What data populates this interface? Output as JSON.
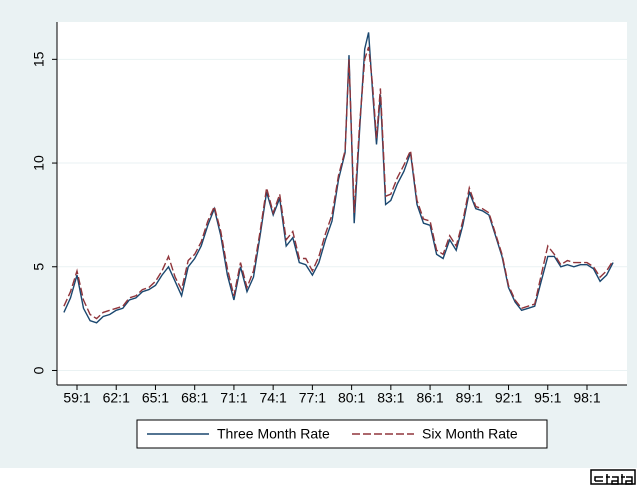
{
  "chart_data": {
    "type": "line",
    "x": [
      1958.0,
      1958.5,
      1959.0,
      1959.5,
      1960.0,
      1960.5,
      1961.0,
      1961.5,
      1962.0,
      1962.5,
      1963.0,
      1963.5,
      1964.0,
      1964.5,
      1965.0,
      1965.5,
      1966.0,
      1966.5,
      1967.0,
      1967.5,
      1968.0,
      1968.5,
      1969.0,
      1969.5,
      1970.0,
      1970.5,
      1971.0,
      1971.5,
      1972.0,
      1972.5,
      1973.0,
      1973.5,
      1974.0,
      1974.5,
      1975.0,
      1975.5,
      1976.0,
      1976.5,
      1977.0,
      1977.5,
      1978.0,
      1978.5,
      1979.0,
      1979.5,
      1979.8,
      1980.2,
      1980.6,
      1981.0,
      1981.3,
      1981.6,
      1981.9,
      1982.2,
      1982.6,
      1983.0,
      1983.5,
      1984.0,
      1984.5,
      1985.0,
      1985.5,
      1986.0,
      1986.5,
      1987.0,
      1987.5,
      1988.0,
      1988.5,
      1989.0,
      1989.5,
      1990.0,
      1990.5,
      1991.0,
      1991.5,
      1992.0,
      1992.5,
      1993.0,
      1993.5,
      1994.0,
      1994.5,
      1995.0,
      1995.5,
      1996.0,
      1996.5,
      1997.0,
      1997.5,
      1998.0,
      1998.5,
      1999.0,
      1999.5,
      2000.0
    ],
    "series": [
      {
        "name": "Three Month Rate",
        "color": "#1a476f",
        "dash": false,
        "values": [
          2.8,
          3.5,
          4.6,
          3.0,
          2.4,
          2.3,
          2.6,
          2.7,
          2.9,
          3.0,
          3.4,
          3.5,
          3.8,
          3.9,
          4.1,
          4.6,
          5.0,
          4.3,
          3.6,
          5.0,
          5.4,
          6.0,
          7.0,
          7.8,
          6.5,
          4.6,
          3.4,
          5.0,
          3.8,
          4.5,
          6.5,
          8.6,
          7.5,
          8.3,
          6.0,
          6.4,
          5.2,
          5.1,
          4.6,
          5.2,
          6.3,
          7.2,
          9.2,
          10.5,
          15.2,
          7.1,
          11.5,
          15.5,
          16.3,
          13.5,
          10.9,
          13.3,
          8.0,
          8.2,
          9.0,
          9.6,
          10.5,
          8.0,
          7.1,
          7.0,
          5.6,
          5.4,
          6.3,
          5.8,
          7.0,
          8.6,
          7.8,
          7.7,
          7.5,
          6.5,
          5.5,
          4.0,
          3.3,
          2.9,
          3.0,
          3.1,
          4.3,
          5.5,
          5.5,
          5.0,
          5.1,
          5.0,
          5.1,
          5.1,
          4.9,
          4.3,
          4.6,
          5.2
        ]
      },
      {
        "name": "Six Month Rate",
        "color": "#90353b",
        "dash": true,
        "values": [
          3.1,
          3.8,
          4.8,
          3.4,
          2.7,
          2.5,
          2.8,
          2.9,
          3.0,
          3.1,
          3.5,
          3.6,
          3.9,
          4.0,
          4.3,
          4.8,
          5.5,
          4.5,
          3.9,
          5.3,
          5.6,
          6.2,
          7.2,
          7.9,
          6.7,
          4.9,
          3.6,
          5.2,
          4.0,
          4.8,
          6.7,
          8.8,
          7.6,
          8.5,
          6.3,
          6.7,
          5.4,
          5.4,
          4.8,
          5.5,
          6.6,
          7.5,
          9.4,
          10.6,
          15.0,
          7.6,
          11.8,
          15.0,
          15.6,
          13.8,
          11.2,
          13.6,
          8.4,
          8.5,
          9.3,
          9.9,
          10.6,
          8.2,
          7.3,
          7.2,
          5.8,
          5.6,
          6.5,
          6.0,
          7.2,
          8.8,
          7.9,
          7.8,
          7.6,
          6.6,
          5.6,
          4.1,
          3.4,
          3.0,
          3.1,
          3.2,
          4.6,
          6.0,
          5.6,
          5.1,
          5.3,
          5.2,
          5.2,
          5.2,
          5.0,
          4.5,
          4.8,
          5.3
        ]
      }
    ],
    "xlim": [
      1957.47,
      2001.06
    ],
    "xticks": [
      {
        "value": 1959,
        "label": "59:1"
      },
      {
        "value": 1962,
        "label": "62:1"
      },
      {
        "value": 1965,
        "label": "65:1"
      },
      {
        "value": 1968,
        "label": "68:1"
      },
      {
        "value": 1971,
        "label": "71:1"
      },
      {
        "value": 1974,
        "label": "74:1"
      },
      {
        "value": 1977,
        "label": "77:1"
      },
      {
        "value": 1980,
        "label": "80:1"
      },
      {
        "value": 1983,
        "label": "83:1"
      },
      {
        "value": 1986,
        "label": "86:1"
      },
      {
        "value": 1989,
        "label": "89:1"
      },
      {
        "value": 1992,
        "label": "92:1"
      },
      {
        "value": 1995,
        "label": "95:1"
      },
      {
        "value": 1998,
        "label": "98:1"
      }
    ],
    "ylim": [
      -0.7,
      16.8
    ],
    "yticks": [
      0,
      5,
      10,
      15
    ],
    "grid": true,
    "legend": "bottom"
  }
}
